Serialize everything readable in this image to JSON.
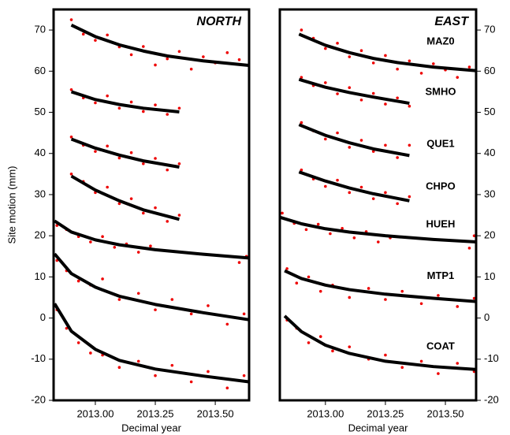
{
  "chart_data": [
    {
      "type": "scatter",
      "panel_title": "NORTH",
      "y_label": "Site motion (mm)",
      "x_label": "Decimal year",
      "xlim": [
        2012.826,
        2013.641
      ],
      "ylim": [
        -20,
        75
      ],
      "xticks": [
        {
          "value": 2013,
          "label": "2013.00"
        },
        {
          "value": 2013.25,
          "label": "2013.25"
        },
        {
          "value": 2013.5,
          "label": "2013.50"
        }
      ],
      "yticks": [
        -20,
        -10,
        0,
        10,
        20,
        30,
        40,
        50,
        60,
        70
      ],
      "ytick_side": "left",
      "fit_color": "#000000",
      "dot_color": "#ee0000",
      "series": [
        {
          "fit_x": [
            2012.9,
            2013.0,
            2013.1,
            2013.2,
            2013.3,
            2013.45,
            2013.64
          ],
          "fit": [
            71.2,
            68.4,
            66.4,
            64.9,
            63.7,
            62.5,
            61.4
          ],
          "dots_x": [
            2012.9,
            2012.95,
            2013.0,
            2013.05,
            2013.1,
            2013.15,
            2013.2,
            2013.25,
            2013.3,
            2013.35,
            2013.4,
            2013.45,
            2013.5,
            2013.55,
            2013.6
          ],
          "dots": [
            72.5,
            69,
            67.5,
            68.8,
            65.9,
            64,
            66,
            61.5,
            63,
            64.8,
            60.5,
            63.5,
            62,
            64.5,
            62.8
          ]
        },
        {
          "fit_x": [
            2012.9,
            2013.0,
            2013.1,
            2013.2,
            2013.35
          ],
          "fit": [
            55,
            53.1,
            51.9,
            51,
            50.1
          ],
          "dots_x": [
            2012.9,
            2012.95,
            2013.0,
            2013.05,
            2013.1,
            2013.15,
            2013.2,
            2013.25,
            2013.3,
            2013.35
          ],
          "dots": [
            55.5,
            53.5,
            52.3,
            54,
            51,
            52.5,
            50.2,
            51.8,
            49.5,
            51
          ]
        },
        {
          "fit_x": [
            2012.9,
            2013.0,
            2013.1,
            2013.2,
            2013.35
          ],
          "fit": [
            43.5,
            41.3,
            39.6,
            38.2,
            36.7
          ],
          "dots_x": [
            2012.9,
            2012.95,
            2013.0,
            2013.05,
            2013.1,
            2013.15,
            2013.2,
            2013.25,
            2013.3,
            2013.35
          ],
          "dots": [
            44,
            42,
            40.5,
            41.8,
            38.9,
            40.2,
            37.5,
            38.8,
            36,
            37.5
          ]
        },
        {
          "fit_x": [
            2012.9,
            2013.0,
            2013.1,
            2013.2,
            2013.35
          ],
          "fit": [
            34.5,
            31.1,
            28.5,
            26.3,
            24
          ],
          "dots_x": [
            2012.9,
            2012.95,
            2013.0,
            2013.05,
            2013.1,
            2013.15,
            2013.2,
            2013.25,
            2013.3,
            2013.35
          ],
          "dots": [
            35,
            33.2,
            30.5,
            31.8,
            27.8,
            29,
            25.5,
            26.8,
            23.5,
            25
          ]
        },
        {
          "fit_x": [
            2012.83,
            2012.9,
            2013.0,
            2013.1,
            2013.25,
            2013.45,
            2013.64
          ],
          "fit": [
            23.6,
            20.9,
            19,
            17.8,
            16.6,
            15.5,
            14.6
          ],
          "dots_x": [
            2012.84,
            2012.88,
            2012.93,
            2012.98,
            2013.03,
            2013.08,
            2013.13,
            2013.18,
            2013.23,
            2013.6,
            2013.63
          ],
          "dots": [
            22.5,
            21.5,
            19.8,
            18.5,
            19.8,
            17.2,
            18,
            16,
            17.5,
            13.5,
            15
          ]
        },
        {
          "fit_x": [
            2012.83,
            2012.9,
            2013.0,
            2013.1,
            2013.25,
            2013.45,
            2013.64
          ],
          "fit": [
            15.6,
            10.8,
            7.5,
            5.3,
            3.3,
            1.3,
            -0.4
          ],
          "dots_x": [
            2012.84,
            2012.88,
            2012.93,
            2012.98,
            2013.03,
            2013.1,
            2013.18,
            2013.25,
            2013.32,
            2013.4,
            2013.47,
            2013.55,
            2013.62
          ],
          "dots": [
            14,
            11.5,
            9,
            8,
            9.5,
            4.5,
            6,
            2,
            4.5,
            1,
            3,
            -1.5,
            1
          ]
        },
        {
          "fit_x": [
            2012.83,
            2012.9,
            2013.0,
            2013.1,
            2013.25,
            2013.45,
            2013.64
          ],
          "fit": [
            3.5,
            -3.2,
            -7.6,
            -10.3,
            -12.4,
            -14.1,
            -15.5
          ],
          "dots_x": [
            2012.84,
            2012.88,
            2012.93,
            2012.98,
            2013.03,
            2013.1,
            2013.18,
            2013.25,
            2013.32,
            2013.4,
            2013.47,
            2013.55,
            2013.62
          ],
          "dots": [
            2,
            -2.5,
            -6,
            -8.5,
            -9,
            -12,
            -10.5,
            -14,
            -11.5,
            -15.5,
            -13,
            -17,
            -14
          ]
        }
      ]
    },
    {
      "type": "scatter",
      "panel_title": "EAST",
      "x_label": "Decimal year",
      "xlim": [
        2012.81,
        2013.628
      ],
      "ylim": [
        -20,
        75
      ],
      "xticks": [
        {
          "value": 2013,
          "label": "2013.00"
        },
        {
          "value": 2013.25,
          "label": "2013.25"
        },
        {
          "value": 2013.5,
          "label": "2013.50"
        }
      ],
      "yticks": [
        -20,
        -10,
        0,
        10,
        20,
        30,
        40,
        50,
        60,
        70
      ],
      "ytick_side": "right",
      "fit_color": "#000000",
      "dot_color": "#ee0000",
      "annotations": [
        {
          "text": "MAZ0",
          "x": 2013.48,
          "y": 67.1
        },
        {
          "text": "SMHO",
          "x": 2013.48,
          "y": 54.9
        },
        {
          "text": "QUE1",
          "x": 2013.48,
          "y": 42.2
        },
        {
          "text": "CHPO",
          "x": 2013.48,
          "y": 31.9
        },
        {
          "text": "HUEH",
          "x": 2013.48,
          "y": 22.7
        },
        {
          "text": "MTP1",
          "x": 2013.48,
          "y": 10.2
        },
        {
          "text": "COAT",
          "x": 2013.48,
          "y": -7
        }
      ],
      "series": [
        {
          "fit_x": [
            2012.89,
            2013.0,
            2013.1,
            2013.2,
            2013.3,
            2013.45,
            2013.63
          ],
          "fit": [
            69,
            66.3,
            64.5,
            63.1,
            62.1,
            61,
            60.1
          ],
          "dots_x": [
            2012.9,
            2012.95,
            2013.0,
            2013.05,
            2013.1,
            2013.15,
            2013.2,
            2013.25,
            2013.3,
            2013.35,
            2013.4,
            2013.45,
            2013.5,
            2013.55,
            2013.6
          ],
          "dots": [
            70,
            68,
            65.5,
            66.8,
            63.5,
            65,
            62,
            63.8,
            60.5,
            62.5,
            59.5,
            61.8,
            60.3,
            58.5,
            61
          ]
        },
        {
          "fit_x": [
            2012.89,
            2013.0,
            2013.1,
            2013.2,
            2013.35
          ],
          "fit": [
            58,
            56.1,
            54.8,
            53.7,
            52.2
          ],
          "dots_x": [
            2012.9,
            2012.95,
            2013.0,
            2013.05,
            2013.1,
            2013.15,
            2013.2,
            2013.25,
            2013.3,
            2013.35
          ],
          "dots": [
            58.5,
            56.5,
            57.2,
            54.5,
            56,
            53,
            54.6,
            52,
            53.5,
            51.5
          ]
        },
        {
          "fit_x": [
            2012.89,
            2013.0,
            2013.1,
            2013.2,
            2013.35
          ],
          "fit": [
            47,
            44.4,
            42.6,
            41.1,
            39.5
          ],
          "dots_x": [
            2012.9,
            2012.95,
            2013.0,
            2013.05,
            2013.1,
            2013.15,
            2013.2,
            2013.25,
            2013.3,
            2013.35
          ],
          "dots": [
            47.5,
            45.5,
            43.5,
            45,
            41.5,
            43.2,
            40.5,
            42,
            39,
            42
          ]
        },
        {
          "fit_x": [
            2012.89,
            2013.0,
            2013.1,
            2013.2,
            2013.35
          ],
          "fit": [
            35.5,
            33.3,
            31.6,
            30.2,
            28.5
          ],
          "dots_x": [
            2012.9,
            2012.95,
            2013.0,
            2013.05,
            2013.1,
            2013.15,
            2013.2,
            2013.25,
            2013.3,
            2013.35
          ],
          "dots": [
            36,
            33.8,
            32,
            33.5,
            30.5,
            31.8,
            29,
            30.5,
            27.8,
            29.5
          ]
        },
        {
          "fit_x": [
            2012.81,
            2012.9,
            2013.0,
            2013.1,
            2013.25,
            2013.45,
            2013.63
          ],
          "fit": [
            24.5,
            22.9,
            21.7,
            20.9,
            20,
            19.1,
            18.5
          ],
          "dots_x": [
            2012.82,
            2012.87,
            2012.92,
            2012.97,
            2013.02,
            2013.07,
            2013.12,
            2013.17,
            2013.22,
            2013.27,
            2013.6,
            2013.62
          ],
          "dots": [
            25.5,
            23,
            21.5,
            22.8,
            20.5,
            21.8,
            19.5,
            21,
            18.5,
            19.5,
            17,
            20
          ]
        },
        {
          "fit_x": [
            2012.83,
            2012.9,
            2013.0,
            2013.1,
            2013.25,
            2013.45,
            2013.63
          ],
          "fit": [
            11.5,
            9.6,
            8,
            6.9,
            5.8,
            4.8,
            4
          ],
          "dots_x": [
            2012.84,
            2012.88,
            2012.93,
            2012.98,
            2013.03,
            2013.1,
            2013.18,
            2013.25,
            2013.32,
            2013.4,
            2013.47,
            2013.55,
            2013.62
          ],
          "dots": [
            12,
            8.5,
            10,
            6.5,
            8,
            5,
            7.2,
            4.5,
            6.5,
            3.5,
            5.5,
            2.8,
            4.8
          ]
        },
        {
          "fit_x": [
            2012.83,
            2012.9,
            2013.0,
            2013.1,
            2013.25,
            2013.45,
            2013.63
          ],
          "fit": [
            0.5,
            -3.3,
            -6.6,
            -8.6,
            -10.5,
            -11.8,
            -12.5
          ],
          "dots_x": [
            2012.84,
            2012.88,
            2012.93,
            2012.98,
            2013.03,
            2013.1,
            2013.18,
            2013.25,
            2013.32,
            2013.4,
            2013.47,
            2013.55,
            2013.62
          ],
          "dots": [
            -0.5,
            -2.5,
            -6,
            -4.5,
            -8,
            -7,
            -10,
            -9,
            -12,
            -10.5,
            -13.5,
            -11,
            -13
          ]
        }
      ]
    }
  ]
}
